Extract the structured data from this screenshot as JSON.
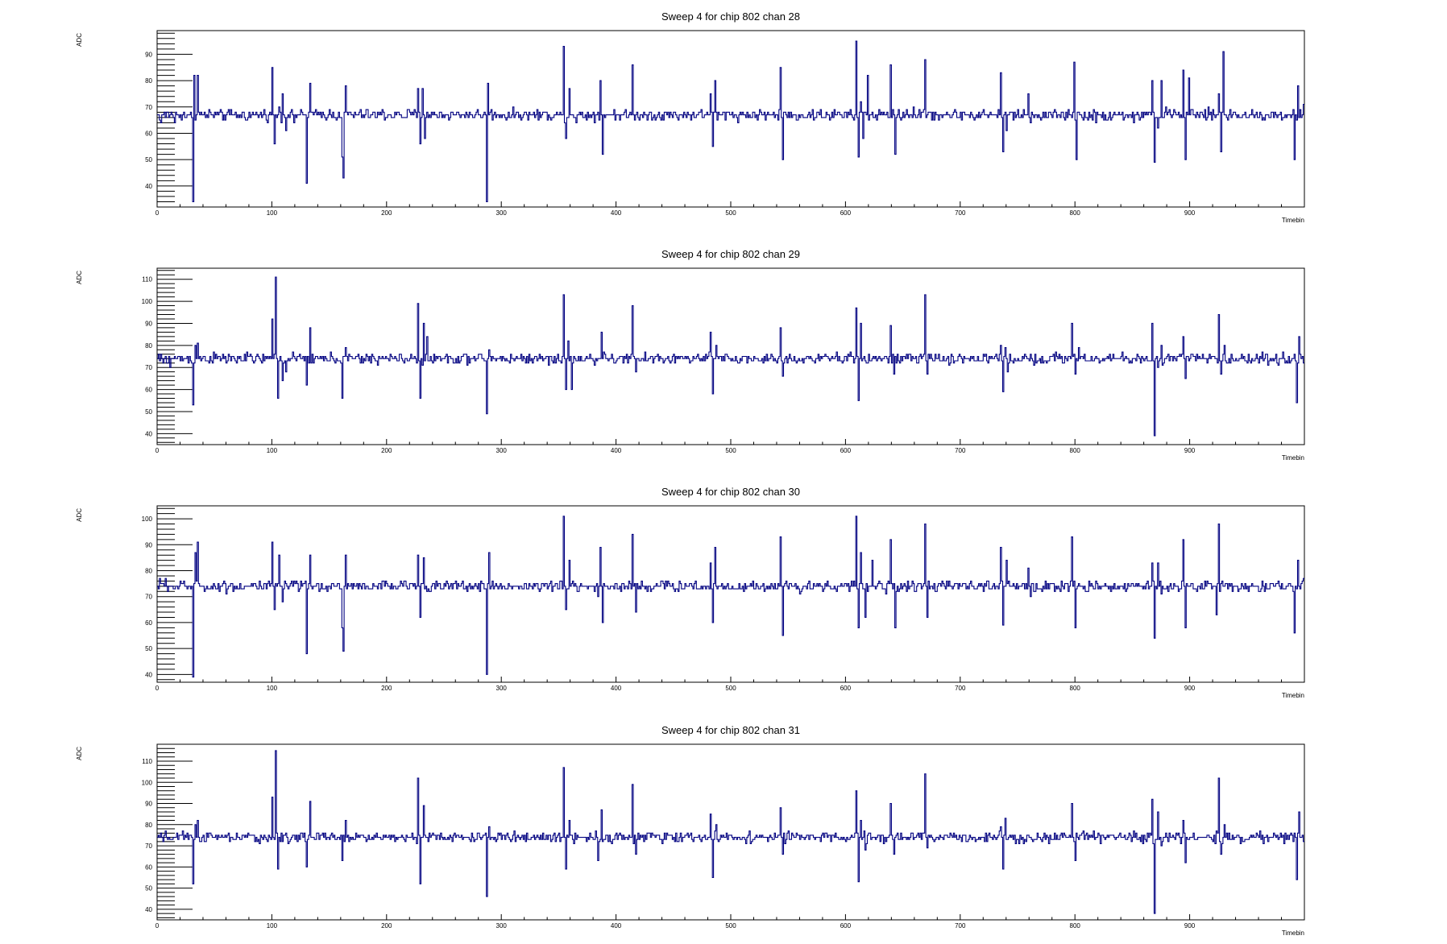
{
  "chart_data": [
    {
      "type": "line",
      "title": "Sweep 4 for chip 802 chan 28",
      "xlabel": "Timebin",
      "ylabel": "ADC",
      "xlim": [
        0,
        1000
      ],
      "ylim": [
        32,
        99
      ],
      "xticks": [
        0,
        100,
        200,
        300,
        400,
        500,
        600,
        700,
        800,
        900
      ],
      "yticks": [
        40,
        50,
        60,
        70,
        80,
        90
      ],
      "baseline": 67,
      "noise": 1.0,
      "series_color": "#000080",
      "events": [
        [
          4,
          64
        ],
        [
          8,
          66
        ],
        [
          16,
          64
        ],
        [
          28,
          67
        ],
        [
          32,
          34
        ],
        [
          33,
          82
        ],
        [
          36,
          82
        ],
        [
          101,
          85
        ],
        [
          103,
          56
        ],
        [
          107,
          70
        ],
        [
          110,
          75
        ],
        [
          113,
          61
        ],
        [
          120,
          64
        ],
        [
          131,
          41
        ],
        [
          134,
          79
        ],
        [
          162,
          51
        ],
        [
          163,
          43
        ],
        [
          165,
          78
        ],
        [
          228,
          77
        ],
        [
          230,
          56
        ],
        [
          232,
          77
        ],
        [
          234,
          58
        ],
        [
          236,
          68
        ],
        [
          288,
          34
        ],
        [
          289,
          79
        ],
        [
          355,
          93
        ],
        [
          357,
          58
        ],
        [
          360,
          77
        ],
        [
          366,
          64
        ],
        [
          385,
          68
        ],
        [
          387,
          80
        ],
        [
          389,
          52
        ],
        [
          415,
          86
        ],
        [
          483,
          75
        ],
        [
          485,
          55
        ],
        [
          487,
          80
        ],
        [
          489,
          65
        ],
        [
          544,
          85
        ],
        [
          546,
          50
        ],
        [
          610,
          95
        ],
        [
          612,
          51
        ],
        [
          614,
          72
        ],
        [
          616,
          58
        ],
        [
          620,
          82
        ],
        [
          630,
          69
        ],
        [
          640,
          86
        ],
        [
          644,
          52
        ],
        [
          660,
          70
        ],
        [
          670,
          88
        ],
        [
          672,
          67
        ],
        [
          736,
          83
        ],
        [
          738,
          53
        ],
        [
          741,
          61
        ],
        [
          760,
          75
        ],
        [
          762,
          64
        ],
        [
          800,
          87
        ],
        [
          802,
          50
        ],
        [
          819,
          64
        ],
        [
          852,
          64
        ],
        [
          868,
          80
        ],
        [
          870,
          49
        ],
        [
          873,
          62
        ],
        [
          876,
          80
        ],
        [
          880,
          70
        ],
        [
          895,
          84
        ],
        [
          897,
          50
        ],
        [
          900,
          81
        ],
        [
          926,
          75
        ],
        [
          928,
          53
        ],
        [
          930,
          91
        ],
        [
          933,
          66
        ],
        [
          992,
          50
        ],
        [
          995,
          78
        ],
        [
          1000,
          71
        ]
      ]
    },
    {
      "type": "line",
      "title": "Sweep 4 for chip 802 chan 29",
      "xlabel": "Timebin",
      "ylabel": "ADC",
      "xlim": [
        0,
        1000
      ],
      "ylim": [
        35,
        115
      ],
      "xticks": [
        0,
        100,
        200,
        300,
        400,
        500,
        600,
        700,
        800,
        900
      ],
      "yticks": [
        40,
        50,
        60,
        70,
        80,
        90,
        100,
        110
      ],
      "baseline": 74,
      "noise": 1.2,
      "series_color": "#000080",
      "events": [
        [
          6,
          72
        ],
        [
          12,
          70
        ],
        [
          32,
          53
        ],
        [
          34,
          80
        ],
        [
          36,
          81
        ],
        [
          101,
          92
        ],
        [
          104,
          111
        ],
        [
          106,
          56
        ],
        [
          110,
          64
        ],
        [
          113,
          68
        ],
        [
          131,
          62
        ],
        [
          134,
          88
        ],
        [
          162,
          56
        ],
        [
          165,
          79
        ],
        [
          228,
          99
        ],
        [
          230,
          56
        ],
        [
          233,
          90
        ],
        [
          236,
          84
        ],
        [
          288,
          49
        ],
        [
          290,
          78
        ],
        [
          355,
          103
        ],
        [
          357,
          60
        ],
        [
          359,
          82
        ],
        [
          362,
          60
        ],
        [
          385,
          74
        ],
        [
          388,
          86
        ],
        [
          415,
          98
        ],
        [
          418,
          68
        ],
        [
          483,
          86
        ],
        [
          485,
          58
        ],
        [
          488,
          80
        ],
        [
          544,
          88
        ],
        [
          546,
          66
        ],
        [
          610,
          97
        ],
        [
          612,
          55
        ],
        [
          614,
          90
        ],
        [
          617,
          75
        ],
        [
          640,
          89
        ],
        [
          643,
          67
        ],
        [
          670,
          103
        ],
        [
          672,
          67
        ],
        [
          736,
          80
        ],
        [
          738,
          59
        ],
        [
          740,
          79
        ],
        [
          742,
          68
        ],
        [
          798,
          90
        ],
        [
          801,
          67
        ],
        [
          804,
          79
        ],
        [
          868,
          90
        ],
        [
          870,
          39
        ],
        [
          873,
          70
        ],
        [
          876,
          80
        ],
        [
          895,
          84
        ],
        [
          897,
          65
        ],
        [
          926,
          94
        ],
        [
          928,
          67
        ],
        [
          931,
          80
        ],
        [
          994,
          54
        ],
        [
          996,
          84
        ],
        [
          1000,
          72
        ]
      ]
    },
    {
      "type": "line",
      "title": "Sweep 4 for chip 802 chan 30",
      "xlabel": "Timebin",
      "ylabel": "ADC",
      "xlim": [
        0,
        1000
      ],
      "ylim": [
        37,
        105
      ],
      "xticks": [
        0,
        100,
        200,
        300,
        400,
        500,
        600,
        700,
        800,
        900
      ],
      "yticks": [
        40,
        50,
        60,
        70,
        80,
        90,
        100
      ],
      "baseline": 74,
      "noise": 1.0,
      "series_color": "#000080",
      "events": [
        [
          3,
          77
        ],
        [
          8,
          77
        ],
        [
          16,
          73
        ],
        [
          32,
          39
        ],
        [
          34,
          87
        ],
        [
          36,
          91
        ],
        [
          101,
          91
        ],
        [
          103,
          65
        ],
        [
          107,
          86
        ],
        [
          110,
          68
        ],
        [
          131,
          48
        ],
        [
          134,
          86
        ],
        [
          162,
          58
        ],
        [
          163,
          49
        ],
        [
          165,
          86
        ],
        [
          228,
          86
        ],
        [
          230,
          62
        ],
        [
          233,
          85
        ],
        [
          288,
          40
        ],
        [
          290,
          87
        ],
        [
          355,
          101
        ],
        [
          357,
          65
        ],
        [
          360,
          84
        ],
        [
          385,
          70
        ],
        [
          387,
          89
        ],
        [
          389,
          60
        ],
        [
          415,
          94
        ],
        [
          418,
          64
        ],
        [
          483,
          83
        ],
        [
          485,
          60
        ],
        [
          487,
          89
        ],
        [
          544,
          93
        ],
        [
          546,
          55
        ],
        [
          610,
          101
        ],
        [
          612,
          58
        ],
        [
          614,
          87
        ],
        [
          618,
          62
        ],
        [
          624,
          84
        ],
        [
          640,
          92
        ],
        [
          644,
          58
        ],
        [
          670,
          98
        ],
        [
          672,
          62
        ],
        [
          736,
          89
        ],
        [
          738,
          59
        ],
        [
          741,
          84
        ],
        [
          760,
          81
        ],
        [
          762,
          70
        ],
        [
          798,
          93
        ],
        [
          801,
          58
        ],
        [
          868,
          83
        ],
        [
          870,
          54
        ],
        [
          873,
          83
        ],
        [
          876,
          71
        ],
        [
          895,
          92
        ],
        [
          897,
          58
        ],
        [
          924,
          63
        ],
        [
          926,
          98
        ],
        [
          929,
          76
        ],
        [
          992,
          56
        ],
        [
          995,
          84
        ],
        [
          1000,
          77
        ]
      ]
    },
    {
      "type": "line",
      "title": "Sweep 4 for chip 802 chan 31",
      "xlabel": "Timebin",
      "ylabel": "ADC",
      "xlim": [
        0,
        1000
      ],
      "ylim": [
        35,
        118
      ],
      "xticks": [
        0,
        100,
        200,
        300,
        400,
        500,
        600,
        700,
        800,
        900
      ],
      "yticks": [
        40,
        50,
        60,
        70,
        80,
        90,
        100,
        110
      ],
      "baseline": 74,
      "noise": 1.2,
      "series_color": "#000080",
      "events": [
        [
          6,
          72
        ],
        [
          32,
          52
        ],
        [
          34,
          80
        ],
        [
          36,
          82
        ],
        [
          101,
          93
        ],
        [
          104,
          115
        ],
        [
          106,
          59
        ],
        [
          110,
          72
        ],
        [
          131,
          60
        ],
        [
          134,
          91
        ],
        [
          162,
          63
        ],
        [
          165,
          82
        ],
        [
          228,
          102
        ],
        [
          230,
          52
        ],
        [
          233,
          89
        ],
        [
          288,
          46
        ],
        [
          290,
          79
        ],
        [
          355,
          107
        ],
        [
          357,
          59
        ],
        [
          360,
          82
        ],
        [
          385,
          63
        ],
        [
          388,
          87
        ],
        [
          415,
          99
        ],
        [
          418,
          66
        ],
        [
          483,
          85
        ],
        [
          485,
          55
        ],
        [
          488,
          80
        ],
        [
          544,
          88
        ],
        [
          546,
          66
        ],
        [
          610,
          96
        ],
        [
          612,
          53
        ],
        [
          614,
          82
        ],
        [
          618,
          68
        ],
        [
          640,
          90
        ],
        [
          643,
          66
        ],
        [
          670,
          104
        ],
        [
          672,
          69
        ],
        [
          736,
          79
        ],
        [
          738,
          59
        ],
        [
          740,
          83
        ],
        [
          798,
          90
        ],
        [
          801,
          63
        ],
        [
          868,
          92
        ],
        [
          870,
          38
        ],
        [
          873,
          86
        ],
        [
          876,
          70
        ],
        [
          895,
          82
        ],
        [
          897,
          62
        ],
        [
          926,
          102
        ],
        [
          928,
          66
        ],
        [
          931,
          80
        ],
        [
          994,
          54
        ],
        [
          996,
          86
        ],
        [
          1000,
          72
        ]
      ]
    }
  ]
}
